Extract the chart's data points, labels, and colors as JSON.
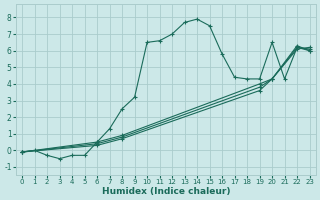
{
  "xlabel": "Humidex (Indice chaleur)",
  "background_color": "#cce8e8",
  "grid_color": "#aacccc",
  "line_color": "#1a6b5a",
  "xlim": [
    -0.5,
    23.5
  ],
  "ylim": [
    -1.5,
    8.8
  ],
  "yticks": [
    -1,
    0,
    1,
    2,
    3,
    4,
    5,
    6,
    7,
    8
  ],
  "xticks": [
    0,
    1,
    2,
    3,
    4,
    5,
    6,
    7,
    8,
    9,
    10,
    11,
    12,
    13,
    14,
    15,
    16,
    17,
    18,
    19,
    20,
    21,
    22,
    23
  ],
  "lines": [
    {
      "x": [
        0,
        1,
        2,
        3,
        4,
        5,
        6,
        7,
        8,
        9,
        10,
        11,
        12,
        13,
        14,
        15,
        16,
        17,
        18,
        19,
        20,
        21,
        22,
        23
      ],
      "y": [
        -0.1,
        0.0,
        -0.3,
        -0.5,
        -0.3,
        -0.3,
        0.5,
        1.3,
        2.5,
        3.2,
        6.5,
        6.6,
        7.0,
        7.7,
        7.9,
        7.5,
        5.8,
        4.4,
        4.3,
        4.3,
        6.5,
        4.3,
        6.2,
        6.0
      ]
    },
    {
      "comment": "diagonal line 1 - from ~0,-0.1 to ~20,4.3",
      "x": [
        0,
        6,
        8,
        19,
        20,
        22,
        23
      ],
      "y": [
        -0.1,
        0.5,
        0.9,
        4.0,
        4.3,
        6.3,
        6.0
      ]
    },
    {
      "x": [
        0,
        6,
        8,
        19,
        20,
        22,
        23
      ],
      "y": [
        -0.1,
        0.4,
        0.8,
        3.8,
        4.3,
        6.2,
        6.1
      ]
    },
    {
      "x": [
        0,
        6,
        8,
        19,
        20,
        22,
        23
      ],
      "y": [
        -0.1,
        0.3,
        0.7,
        3.6,
        4.3,
        6.1,
        6.2
      ]
    }
  ]
}
